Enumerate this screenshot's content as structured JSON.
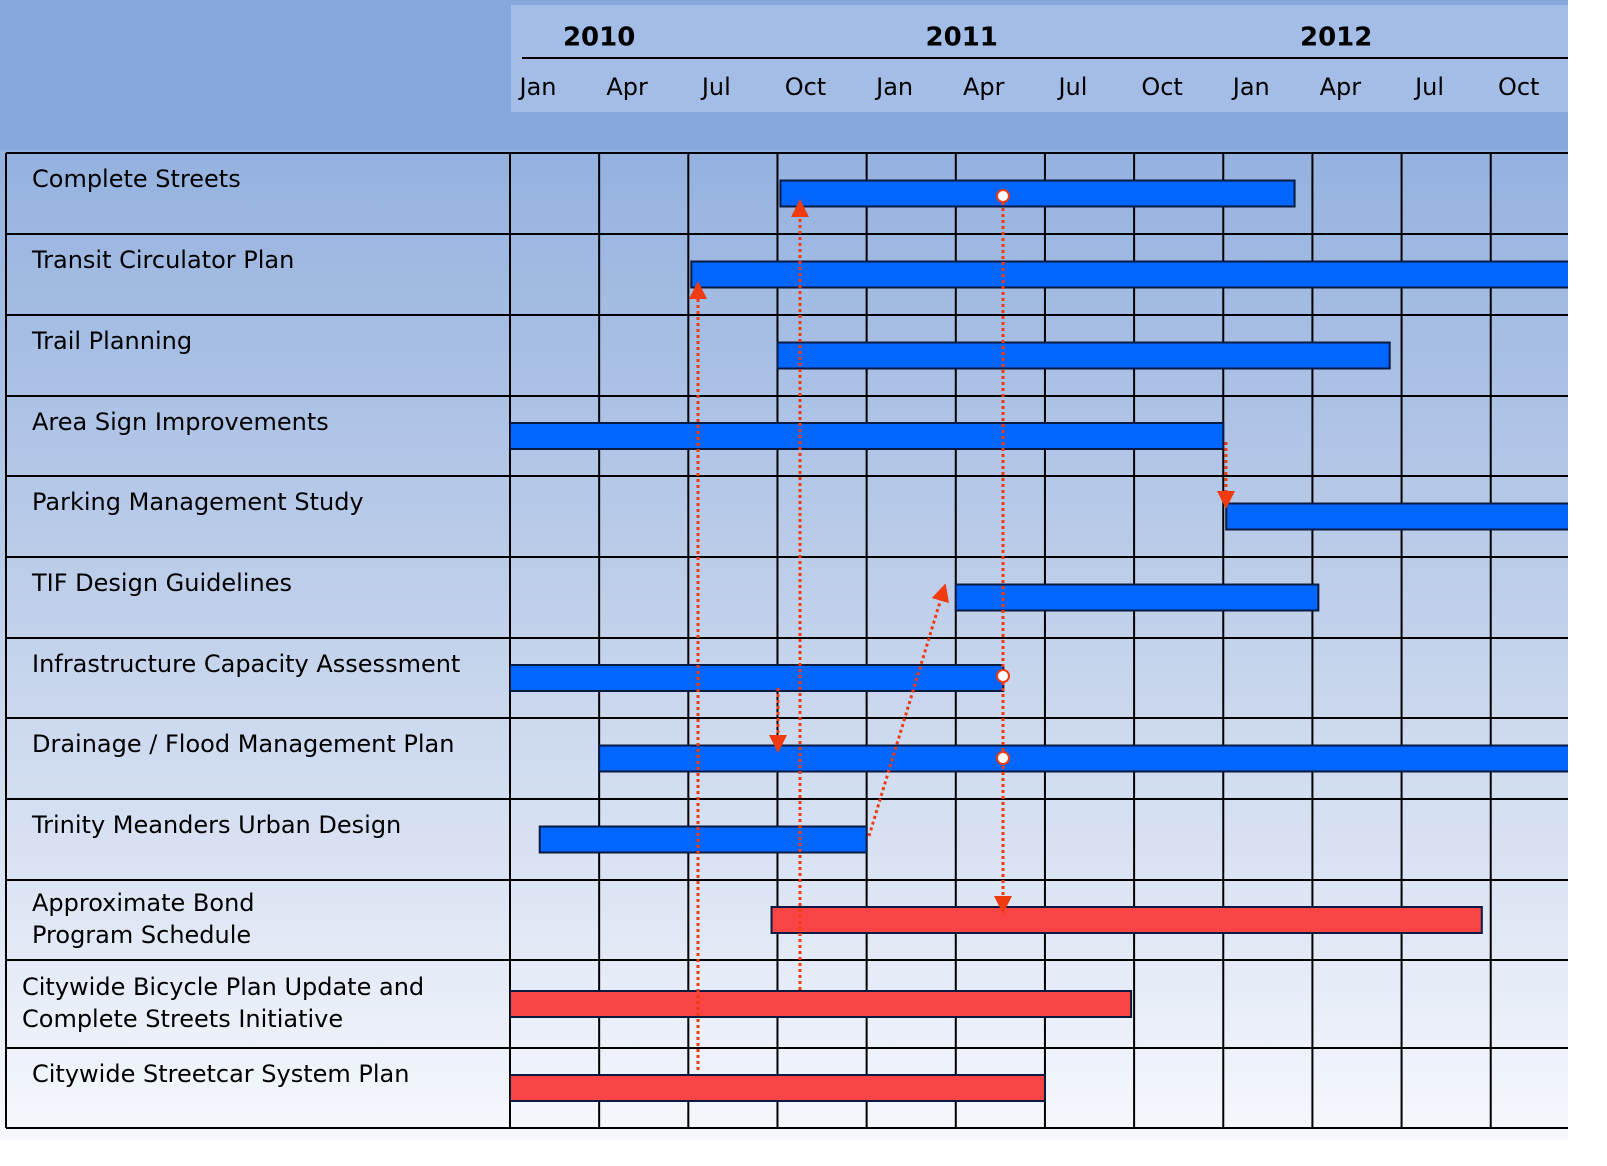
{
  "chart_data": {
    "type": "gantt",
    "xlim": [
      0,
      35.6
    ],
    "year_ticks": [
      {
        "value": 3,
        "label": "2010"
      },
      {
        "value": 15.2,
        "label": "2011"
      },
      {
        "value": 27.8,
        "label": "2012"
      }
    ],
    "xticks": [
      {
        "value": 0,
        "label": "Jan"
      },
      {
        "value": 3,
        "label": "Apr"
      },
      {
        "value": 6,
        "label": "Jul"
      },
      {
        "value": 9,
        "label": "Oct"
      },
      {
        "value": 12,
        "label": "Jan"
      },
      {
        "value": 15,
        "label": "Apr"
      },
      {
        "value": 18,
        "label": "Jul"
      },
      {
        "value": 21,
        "label": "Oct"
      },
      {
        "value": 24,
        "label": "Jan"
      },
      {
        "value": 27,
        "label": "Apr"
      },
      {
        "value": 30,
        "label": "Jul"
      },
      {
        "value": 33,
        "label": "Oct"
      }
    ],
    "grid": true,
    "tasks": [
      {
        "name": [
          "Complete Streets"
        ],
        "start": 9.1,
        "end": 26.4,
        "color": "#0066ff"
      },
      {
        "name": [
          "Transit Circulator Plan"
        ],
        "start": 6.1,
        "end": 36,
        "color": "#0066ff"
      },
      {
        "name": [
          "Trail Planning"
        ],
        "start": 9.0,
        "end": 29.6,
        "color": "#0066ff"
      },
      {
        "name": [
          "Area Sign Improvements"
        ],
        "start": 0,
        "end": 24,
        "color": "#0066ff"
      },
      {
        "name": [
          "Parking Management Study"
        ],
        "start": 24.1,
        "end": 36,
        "color": "#0066ff"
      },
      {
        "name": [
          "TIF Design Guidelines"
        ],
        "start": 15.0,
        "end": 27.2,
        "color": "#0066ff"
      },
      {
        "name": [
          "Infrastructure Capacity Assessment"
        ],
        "start": 0,
        "end": 16.6,
        "color": "#0066ff"
      },
      {
        "name": [
          "Drainage / Flood Management Plan"
        ],
        "start": 3.0,
        "end": 36,
        "color": "#0066ff"
      },
      {
        "name": [
          "Trinity Meanders Urban Design"
        ],
        "start": 1.0,
        "end": 12.0,
        "color": "#0066ff"
      },
      {
        "name": [
          "Approximate Bond",
          "Program Schedule"
        ],
        "start": 8.8,
        "end": 32.7,
        "color": "#f84444"
      },
      {
        "name": [
          "Citywide Bicycle Plan Update and",
          "Complete Streets Initiative"
        ],
        "start": 0,
        "end": 20.9,
        "color": "#f84444"
      },
      {
        "name": [
          "Citywide Streetcar System Plan"
        ],
        "start": 0,
        "end": 18.0,
        "color": "#f84444"
      }
    ]
  }
}
